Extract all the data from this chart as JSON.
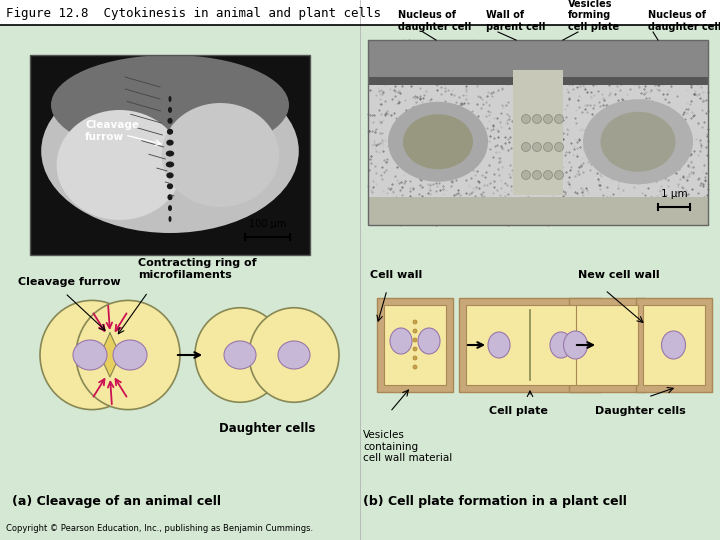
{
  "title": "Figure 12.8  Cytokinesis in animal and plant cells",
  "background_color": "#d4e8d4",
  "title_bg": "#ffffff",
  "left_scale": "100 μm",
  "right_scale": "1 μm",
  "left_diagram_labels": {
    "cleavage_furrow": "Cleavage furrow",
    "contracting_ring": "Contracting ring of\nmicrofilaments",
    "daughter_cells": "Daughter cells"
  },
  "right_diagram_labels": {
    "cell_wall": "Cell wall",
    "new_cell_wall": "New cell wall",
    "vesicles": "Vesicles\ncontaining\ncell wall material",
    "cell_plate": "Cell plate",
    "daughter_cells": "Daughter cells"
  },
  "right_top_labels": {
    "nucleus_daughter_left": "Nucleus of\ndaughter cell",
    "wall_parent": "Wall of\nparent cell",
    "vesicles_forming": "Vesicles\nforming\ncell plate",
    "nucleus_daughter_right": "Nucleus of\ndaughter cell"
  },
  "bottom_left_label": "(a) Cleavage of an animal cell",
  "bottom_right_label": "(b) Cell plate formation in a plant cell",
  "copyright": "Copyright © Pearson Education, Inc., publishing as Benjamin Cummings.",
  "cell_fill_animal": "#f5e8a0",
  "cell_fill_plant": "#f5e8a0",
  "nucleus_fill": "#c8b8d8",
  "arrow_color": "#cc1155",
  "fig_width": 7.2,
  "fig_height": 5.4,
  "dpi": 100
}
